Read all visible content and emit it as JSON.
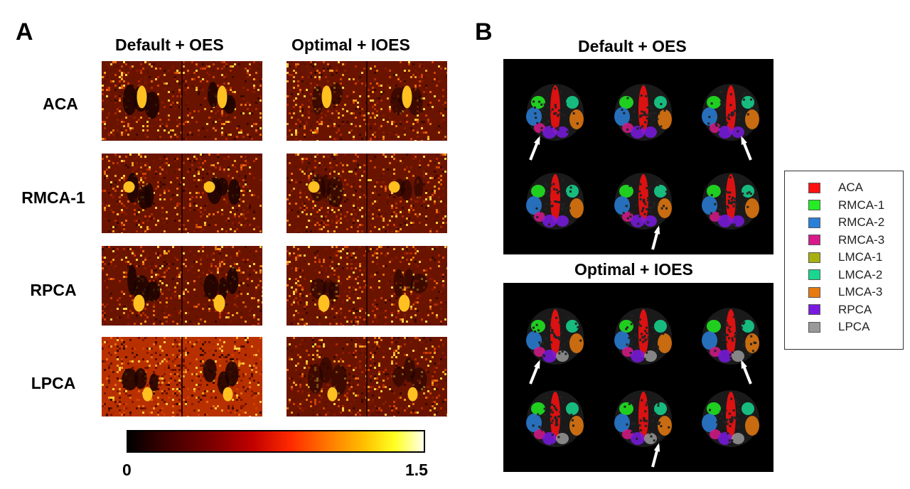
{
  "panel_a": {
    "letter": "A",
    "col_titles": [
      "Default + OES",
      "Optimal + IOES"
    ],
    "rows": [
      "ACA",
      "RMCA-1",
      "RPCA",
      "LPCA"
    ],
    "colorbar": {
      "min_label": "0",
      "max_label": "1.5"
    }
  },
  "panel_b": {
    "letter": "B",
    "titles": [
      "Default + OES",
      "Optimal + IOES"
    ],
    "legend": [
      {
        "label": "ACA",
        "color": "#ff1010"
      },
      {
        "label": "RMCA-1",
        "color": "#22ee22"
      },
      {
        "label": "RMCA-2",
        "color": "#2a7fd8"
      },
      {
        "label": "RMCA-3",
        "color": "#d81a8a"
      },
      {
        "label": "LMCA-1",
        "color": "#a8b010"
      },
      {
        "label": "LMCA-2",
        "color": "#18d890"
      },
      {
        "label": "LMCA-3",
        "color": "#e87a10"
      },
      {
        "label": "RPCA",
        "color": "#7a1ae0"
      },
      {
        "label": "LPCA",
        "color": "#999999"
      }
    ]
  }
}
